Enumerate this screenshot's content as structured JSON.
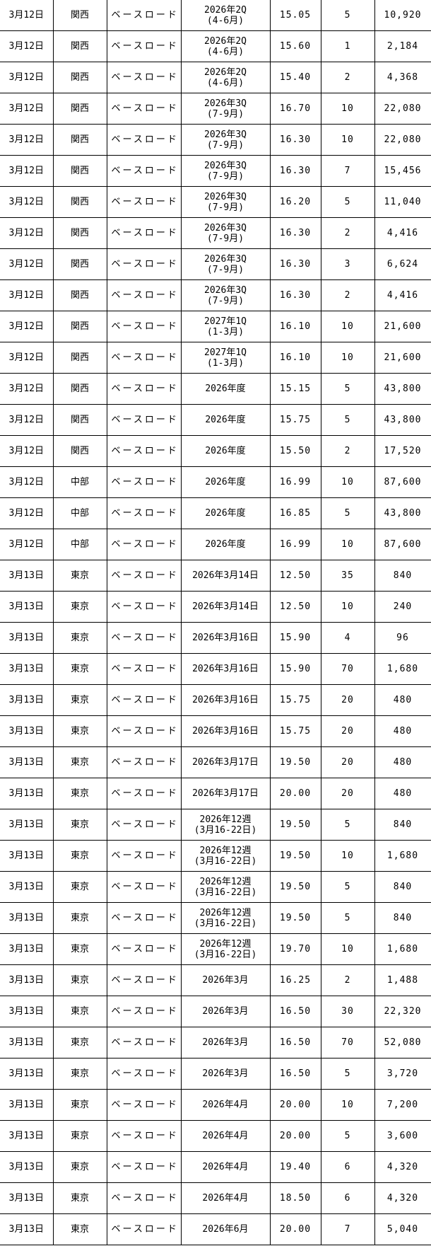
{
  "rows": [
    {
      "date": "3月12日",
      "area": "関西",
      "product": "ベースロード",
      "period": "2026年2Q",
      "period_sub": "(4-6月)",
      "price": "15.05",
      "qty": "5",
      "amount": "10,920"
    },
    {
      "date": "3月12日",
      "area": "関西",
      "product": "ベースロード",
      "period": "2026年2Q",
      "period_sub": "(4-6月)",
      "price": "15.60",
      "qty": "1",
      "amount": "2,184"
    },
    {
      "date": "3月12日",
      "area": "関西",
      "product": "ベースロード",
      "period": "2026年2Q",
      "period_sub": "(4-6月)",
      "price": "15.40",
      "qty": "2",
      "amount": "4,368"
    },
    {
      "date": "3月12日",
      "area": "関西",
      "product": "ベースロード",
      "period": "2026年3Q",
      "period_sub": "(7-9月)",
      "price": "16.70",
      "qty": "10",
      "amount": "22,080"
    },
    {
      "date": "3月12日",
      "area": "関西",
      "product": "ベースロード",
      "period": "2026年3Q",
      "period_sub": "(7-9月)",
      "price": "16.30",
      "qty": "10",
      "amount": "22,080"
    },
    {
      "date": "3月12日",
      "area": "関西",
      "product": "ベースロード",
      "period": "2026年3Q",
      "period_sub": "(7-9月)",
      "price": "16.30",
      "qty": "7",
      "amount": "15,456"
    },
    {
      "date": "3月12日",
      "area": "関西",
      "product": "ベースロード",
      "period": "2026年3Q",
      "period_sub": "(7-9月)",
      "price": "16.20",
      "qty": "5",
      "amount": "11,040"
    },
    {
      "date": "3月12日",
      "area": "関西",
      "product": "ベースロード",
      "period": "2026年3Q",
      "period_sub": "(7-9月)",
      "price": "16.30",
      "qty": "2",
      "amount": "4,416"
    },
    {
      "date": "3月12日",
      "area": "関西",
      "product": "ベースロード",
      "period": "2026年3Q",
      "period_sub": "(7-9月)",
      "price": "16.30",
      "qty": "3",
      "amount": "6,624"
    },
    {
      "date": "3月12日",
      "area": "関西",
      "product": "ベースロード",
      "period": "2026年3Q",
      "period_sub": "(7-9月)",
      "price": "16.30",
      "qty": "2",
      "amount": "4,416"
    },
    {
      "date": "3月12日",
      "area": "関西",
      "product": "ベースロード",
      "period": "2027年1Q",
      "period_sub": "(1-3月)",
      "price": "16.10",
      "qty": "10",
      "amount": "21,600"
    },
    {
      "date": "3月12日",
      "area": "関西",
      "product": "ベースロード",
      "period": "2027年1Q",
      "period_sub": "(1-3月)",
      "price": "16.10",
      "qty": "10",
      "amount": "21,600"
    },
    {
      "date": "3月12日",
      "area": "関西",
      "product": "ベースロード",
      "period": "2026年度",
      "price": "15.15",
      "qty": "5",
      "amount": "43,800"
    },
    {
      "date": "3月12日",
      "area": "関西",
      "product": "ベースロード",
      "period": "2026年度",
      "price": "15.75",
      "qty": "5",
      "amount": "43,800"
    },
    {
      "date": "3月12日",
      "area": "関西",
      "product": "ベースロード",
      "period": "2026年度",
      "price": "15.50",
      "qty": "2",
      "amount": "17,520"
    },
    {
      "date": "3月12日",
      "area": "中部",
      "product": "ベースロード",
      "period": "2026年度",
      "price": "16.99",
      "qty": "10",
      "amount": "87,600"
    },
    {
      "date": "3月12日",
      "area": "中部",
      "product": "ベースロード",
      "period": "2026年度",
      "price": "16.85",
      "qty": "5",
      "amount": "43,800"
    },
    {
      "date": "3月12日",
      "area": "中部",
      "product": "ベースロード",
      "period": "2026年度",
      "price": "16.99",
      "qty": "10",
      "amount": "87,600"
    },
    {
      "date": "3月13日",
      "area": "東京",
      "product": "ベースロード",
      "period": "2026年3月14日",
      "price": "12.50",
      "qty": "35",
      "amount": "840"
    },
    {
      "date": "3月13日",
      "area": "東京",
      "product": "ベースロード",
      "period": "2026年3月14日",
      "price": "12.50",
      "qty": "10",
      "amount": "240"
    },
    {
      "date": "3月13日",
      "area": "東京",
      "product": "ベースロード",
      "period": "2026年3月16日",
      "price": "15.90",
      "qty": "4",
      "amount": "96"
    },
    {
      "date": "3月13日",
      "area": "東京",
      "product": "ベースロード",
      "period": "2026年3月16日",
      "price": "15.90",
      "qty": "70",
      "amount": "1,680"
    },
    {
      "date": "3月13日",
      "area": "東京",
      "product": "ベースロード",
      "period": "2026年3月16日",
      "price": "15.75",
      "qty": "20",
      "amount": "480"
    },
    {
      "date": "3月13日",
      "area": "東京",
      "product": "ベースロード",
      "period": "2026年3月16日",
      "price": "15.75",
      "qty": "20",
      "amount": "480"
    },
    {
      "date": "3月13日",
      "area": "東京",
      "product": "ベースロード",
      "period": "2026年3月17日",
      "price": "19.50",
      "qty": "20",
      "amount": "480"
    },
    {
      "date": "3月13日",
      "area": "東京",
      "product": "ベースロード",
      "period": "2026年3月17日",
      "price": "20.00",
      "qty": "20",
      "amount": "480"
    },
    {
      "date": "3月13日",
      "area": "東京",
      "product": "ベースロード",
      "period": "2026年12週",
      "period_sub": "(3月16-22日)",
      "price": "19.50",
      "qty": "5",
      "amount": "840"
    },
    {
      "date": "3月13日",
      "area": "東京",
      "product": "ベースロード",
      "period": "2026年12週",
      "period_sub": "(3月16-22日)",
      "price": "19.50",
      "qty": "10",
      "amount": "1,680"
    },
    {
      "date": "3月13日",
      "area": "東京",
      "product": "ベースロード",
      "period": "2026年12週",
      "period_sub": "(3月16-22日)",
      "price": "19.50",
      "qty": "5",
      "amount": "840"
    },
    {
      "date": "3月13日",
      "area": "東京",
      "product": "ベースロード",
      "period": "2026年12週",
      "period_sub": "(3月16-22日)",
      "price": "19.50",
      "qty": "5",
      "amount": "840"
    },
    {
      "date": "3月13日",
      "area": "東京",
      "product": "ベースロード",
      "period": "2026年12週",
      "period_sub": "(3月16-22日)",
      "price": "19.70",
      "qty": "10",
      "amount": "1,680"
    },
    {
      "date": "3月13日",
      "area": "東京",
      "product": "ベースロード",
      "period": "2026年3月",
      "price": "16.25",
      "qty": "2",
      "amount": "1,488"
    },
    {
      "date": "3月13日",
      "area": "東京",
      "product": "ベースロード",
      "period": "2026年3月",
      "price": "16.50",
      "qty": "30",
      "amount": "22,320"
    },
    {
      "date": "3月13日",
      "area": "東京",
      "product": "ベースロード",
      "period": "2026年3月",
      "price": "16.50",
      "qty": "70",
      "amount": "52,080"
    },
    {
      "date": "3月13日",
      "area": "東京",
      "product": "ベースロード",
      "period": "2026年3月",
      "price": "16.50",
      "qty": "5",
      "amount": "3,720"
    },
    {
      "date": "3月13日",
      "area": "東京",
      "product": "ベースロード",
      "period": "2026年4月",
      "price": "20.00",
      "qty": "10",
      "amount": "7,200"
    },
    {
      "date": "3月13日",
      "area": "東京",
      "product": "ベースロード",
      "period": "2026年4月",
      "price": "20.00",
      "qty": "5",
      "amount": "3,600"
    },
    {
      "date": "3月13日",
      "area": "東京",
      "product": "ベースロード",
      "period": "2026年4月",
      "price": "19.40",
      "qty": "6",
      "amount": "4,320"
    },
    {
      "date": "3月13日",
      "area": "東京",
      "product": "ベースロード",
      "period": "2026年4月",
      "price": "18.50",
      "qty": "6",
      "amount": "4,320"
    },
    {
      "date": "3月13日",
      "area": "東京",
      "product": "ベースロード",
      "period": "2026年6月",
      "price": "20.00",
      "qty": "7",
      "amount": "5,040"
    }
  ]
}
